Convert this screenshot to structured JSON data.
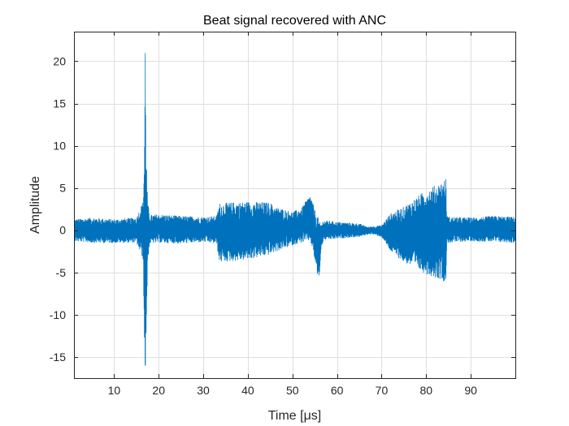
{
  "chart_data": {
    "type": "line",
    "title": "Beat signal recovered with ANC",
    "xlabel": "Time [μs]",
    "ylabel": "Amplitude",
    "xlim": [
      1,
      100
    ],
    "ylim": [
      -17.5,
      23.5
    ],
    "xticks": [
      10,
      20,
      30,
      40,
      50,
      60,
      70,
      80,
      90
    ],
    "xtick_labels": [
      "10",
      "20",
      "30",
      "40",
      "50",
      "60",
      "70",
      "80",
      "90"
    ],
    "yticks": [
      -15,
      -10,
      -5,
      0,
      5,
      10,
      15,
      20
    ],
    "ytick_labels": [
      "-15",
      "-10",
      "-5",
      "0",
      "5",
      "10",
      "15",
      "20"
    ],
    "grid": true,
    "series": [
      {
        "color": "#0072BD",
        "envelope": {
          "x": [
            1,
            5,
            10,
            15,
            16.5,
            16.8,
            17,
            17.2,
            17.5,
            18,
            20,
            25,
            30,
            33,
            33.6,
            36,
            40,
            45,
            46,
            48,
            50,
            52,
            53,
            54,
            55,
            55.8,
            56,
            56.5,
            57,
            60,
            65,
            67,
            68,
            70,
            72,
            75,
            78,
            80,
            83,
            84.5,
            84.6,
            85,
            90,
            95,
            99.9
          ],
          "upper": [
            1.3,
            1.5,
            1.3,
            1.5,
            3.5,
            10,
            23.5,
            10,
            3.5,
            1.8,
            1.9,
            1.7,
            1.6,
            1.7,
            3.2,
            3.3,
            3.4,
            3.3,
            2.8,
            2.5,
            2.2,
            2.6,
            3.5,
            4.2,
            2.5,
            1.5,
            1.0,
            0.8,
            1.2,
            1.0,
            0.8,
            0.4,
            0.5,
            0.6,
            2.0,
            2.8,
            4.0,
            4.8,
            5.6,
            6.2,
            1.8,
            1.6,
            1.5,
            1.7,
            1.6
          ],
          "lower": [
            -1.3,
            -1.5,
            -1.5,
            -1.5,
            -3.5,
            -14.5,
            -17.5,
            -14.5,
            -4.0,
            -1.6,
            -1.5,
            -1.6,
            -1.4,
            -1.6,
            -3.8,
            -3.7,
            -3.5,
            -2.9,
            -2.6,
            -2.2,
            -1.8,
            -1.5,
            -1.4,
            -1.2,
            -3.5,
            -6.0,
            -5.8,
            -2.0,
            -1.2,
            -1.0,
            -0.8,
            -0.5,
            -0.5,
            -0.8,
            -2.5,
            -3.8,
            -4.6,
            -5.2,
            -5.8,
            -6.2,
            -1.6,
            -1.5,
            -1.3,
            -1.4,
            -1.5
          ]
        }
      }
    ]
  }
}
